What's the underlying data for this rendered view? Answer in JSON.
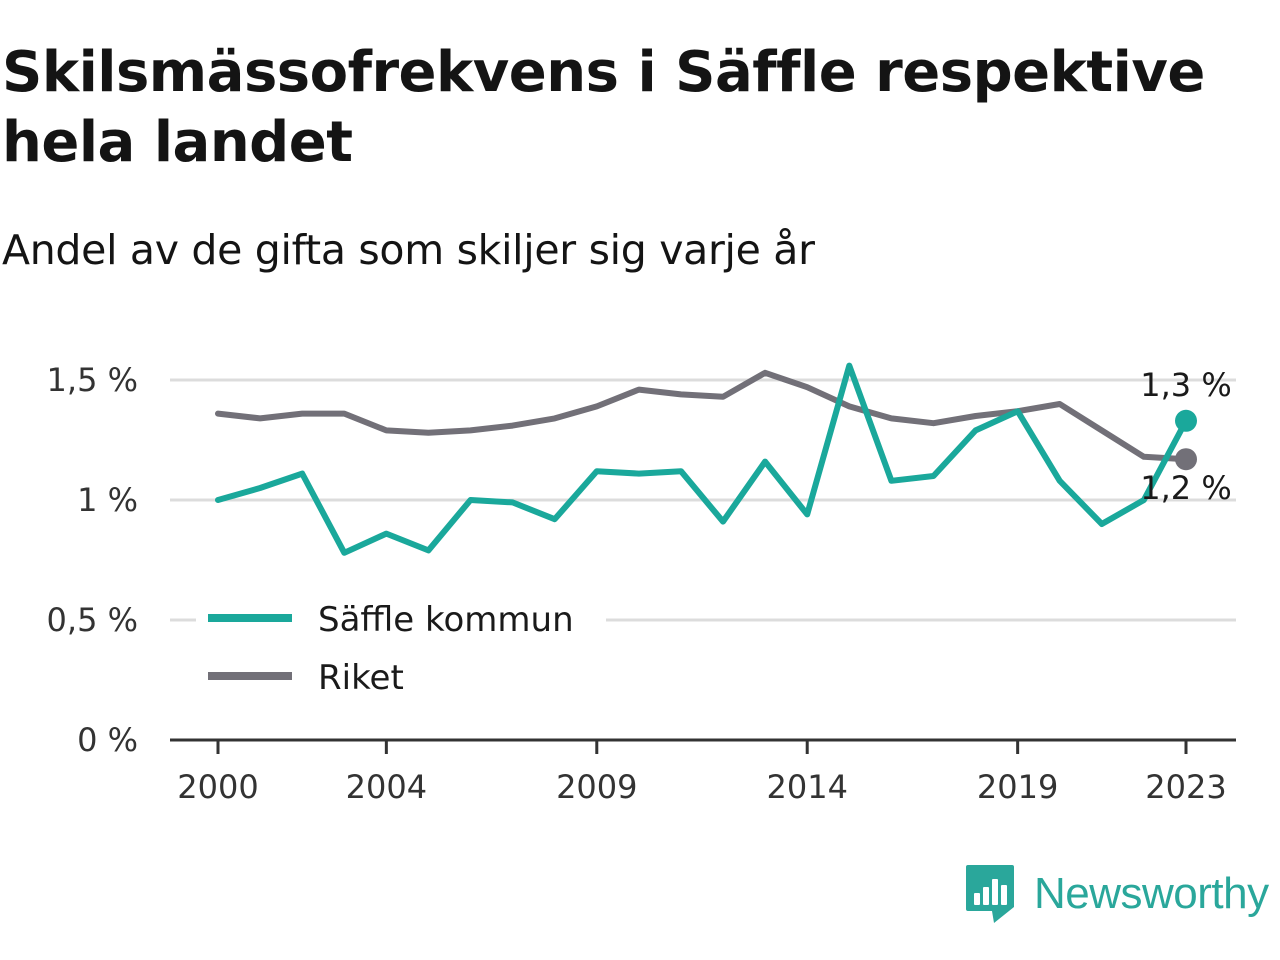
{
  "title": "Skilsmässofrekvens i Säffle respektive hela landet",
  "subtitle": "Andel av de gifta som skiljer sig varje år",
  "brand": {
    "name": "Newsworthy",
    "icon": "newsworthy-logo-icon",
    "color": "#2aa79b"
  },
  "chart_data": {
    "type": "line",
    "x": [
      2000,
      2001,
      2002,
      2003,
      2004,
      2005,
      2006,
      2007,
      2008,
      2009,
      2010,
      2011,
      2012,
      2013,
      2014,
      2015,
      2016,
      2017,
      2018,
      2019,
      2020,
      2021,
      2022,
      2023
    ],
    "series": [
      {
        "name": "Säffle kommun",
        "color": "#1aa89b",
        "values": [
          1.0,
          1.05,
          1.11,
          0.78,
          0.86,
          0.79,
          1.0,
          0.99,
          0.92,
          1.12,
          1.11,
          1.12,
          0.91,
          1.16,
          0.94,
          1.56,
          1.08,
          1.1,
          1.29,
          1.37,
          1.08,
          0.9,
          1.0,
          1.33
        ]
      },
      {
        "name": "Riket",
        "color": "#727078",
        "values": [
          1.36,
          1.34,
          1.36,
          1.36,
          1.29,
          1.28,
          1.29,
          1.31,
          1.34,
          1.39,
          1.46,
          1.44,
          1.43,
          1.53,
          1.47,
          1.39,
          1.34,
          1.32,
          1.35,
          1.37,
          1.4,
          1.29,
          1.18,
          1.17
        ]
      }
    ],
    "ylim": [
      0,
      1.7
    ],
    "yticks": [
      0,
      0.5,
      1,
      1.5
    ],
    "ytick_labels": [
      "0 %",
      "0,5 %",
      "1 %",
      "1,5 %"
    ],
    "xticks": [
      2000,
      2004,
      2009,
      2014,
      2019,
      2023
    ],
    "xtick_labels": [
      "2000",
      "2004",
      "2009",
      "2014",
      "2019",
      "2023"
    ],
    "end_labels": [
      "1,3 %",
      "1,2 %"
    ],
    "grid": true,
    "legend_position": "bottom-left"
  }
}
